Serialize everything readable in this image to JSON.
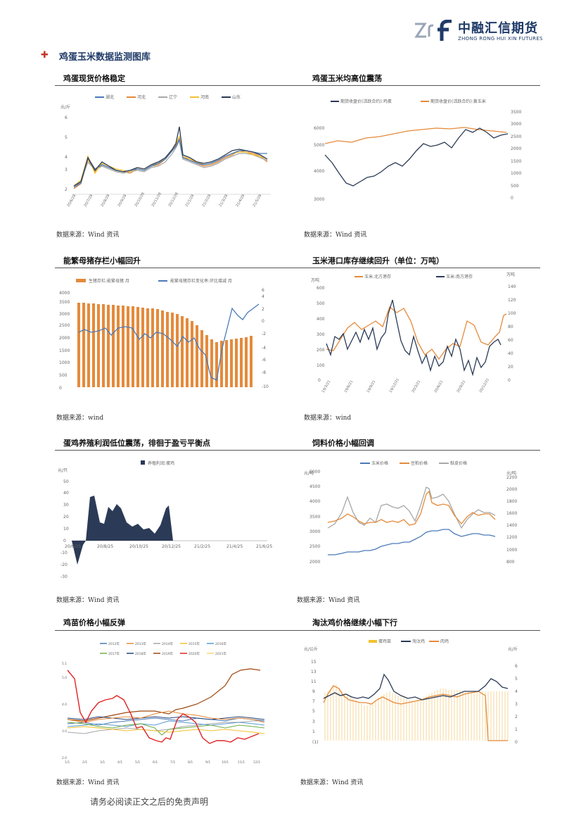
{
  "logo": {
    "cn": "中融汇信期货",
    "en": "ZHONG RONG HUI XIN FUTURES"
  },
  "section_title": "鸡蛋玉米数据监测图库",
  "panels": [
    {
      "title": "鸡蛋现货价格稳定",
      "source": "数据来源：Wind 资讯",
      "chart": {
        "legend": [
          "湖北",
          "河北",
          "辽宁",
          "河南",
          "山东"
        ],
        "colors": [
          "#4a7ab8",
          "#e58a3b",
          "#a8a8a8",
          "#f2c12e",
          "#2b3a56"
        ],
        "unit": "元/斤",
        "yticks": [
          "2",
          "3",
          "4",
          "5",
          "6"
        ],
        "xticks": [
          "20/6/28",
          "20/7/28",
          "20/8/28",
          "20/9/28",
          "20/10/28",
          "20/11/28",
          "20/12/28",
          "21/1/28",
          "21/2/28",
          "21/3/28",
          "21/4/28",
          "21/5/28"
        ]
      }
    },
    {
      "title": "鸡蛋玉米均高位震荡",
      "source": "数据来源：Wind 资讯",
      "chart": {
        "legend": [
          "期货收盘价(活跃合约):鸡蛋",
          "期货收盘价(活跃合约):黄玉米"
        ],
        "colors": [
          "#2b3a56",
          "#e58a3b"
        ],
        "yleft": [
          "3000",
          "4000",
          "5000",
          "6000"
        ],
        "yright": [
          "0",
          "500",
          "1000",
          "1500",
          "2000",
          "2500",
          "3000",
          "3500"
        ]
      }
    },
    {
      "title": "能繁母猪存栏小幅回升",
      "source": "数据来源：wind",
      "chart": {
        "legend": [
          "生猪存栏:能繁母猪 月",
          "能繁母猪存栏变化率:环比增减 月"
        ],
        "colors": [
          "#e58a3b",
          "#4a7ab8"
        ],
        "yleft": [
          "0",
          "500",
          "1000",
          "1500",
          "2000",
          "2500",
          "3000",
          "3500",
          "4000"
        ],
        "yright": [
          "-10",
          "-8",
          "-6",
          "-4",
          "-2",
          "0",
          "2",
          "4",
          "6"
        ]
      }
    },
    {
      "title": "玉米港口库存继续回升（单位：万吨）",
      "source": "数据来源：wind",
      "chart": {
        "legend": [
          "玉米:北方港存",
          "玉米:南方港存"
        ],
        "colors": [
          "#e58a3b",
          "#2b3a56"
        ],
        "unit_left": "万吨",
        "unit_right": "万吨",
        "yleft": [
          "0",
          "100",
          "200",
          "300",
          "400",
          "500",
          "600"
        ],
        "yright": [
          "0",
          "20",
          "40",
          "60",
          "80",
          "100",
          "120",
          "140"
        ],
        "xticks": [
          "19/3/21",
          "19/6/21",
          "19/9/21",
          "19/12/21",
          "20/3/21",
          "20/6/21",
          "20/9/21",
          "20/12/21"
        ]
      }
    },
    {
      "title": "蛋鸡养殖利润低位震荡，徘徊于盈亏平衡点",
      "source": "数据来源：Wind 资讯",
      "chart": {
        "legend": [
          "养殖利润:蛋鸡"
        ],
        "colors": [
          "#2b3a56"
        ],
        "unit": "元/只",
        "yticks": [
          "-30",
          "-20",
          "-10",
          "0",
          "10",
          "20",
          "30",
          "40",
          "50"
        ],
        "xticks": [
          "20/6/25",
          "20/8/25",
          "20/10/25",
          "20/12/25",
          "21/2/25",
          "21/4/25",
          "21/6/25"
        ]
      }
    },
    {
      "title": "饲料价格小幅回调",
      "source": "数据来源：Wind 资讯",
      "chart": {
        "legend": [
          "玉米价格",
          "豆粕价格",
          "麸皮价格"
        ],
        "colors": [
          "#4a7ab8",
          "#e58a3b",
          "#a8a8a8"
        ],
        "unit_left": "元/吨",
        "unit_right": "元/吨",
        "yleft": [
          "2000",
          "2500",
          "3000",
          "3500",
          "4000",
          "4500",
          "5000"
        ],
        "yright": [
          "800",
          "1000",
          "1200",
          "1400",
          "1600",
          "1800",
          "2000",
          "2200"
        ]
      }
    },
    {
      "title": "鸡苗价格小幅反弹",
      "source": "数据来源：Wind 资讯",
      "chart": {
        "legend": [
          "2012年",
          "2013年",
          "2014年",
          "2015年",
          "2016年",
          "2017年",
          "2018年",
          "2019年",
          "2020年",
          "2021年"
        ],
        "colors": [
          "#4a7ab8",
          "#e58a3b",
          "#a8a8a8",
          "#f2c12e",
          "#5b9bd5",
          "#70ad47",
          "#264478",
          "#9e480e",
          "#e02424",
          "#f5d76e"
        ],
        "xticks": [
          "1/1",
          "2/1",
          "3/1",
          "4/1",
          "5/1",
          "6/1",
          "7/1",
          "8/1",
          "9/1",
          "10/1",
          "11/1",
          "12/1"
        ]
      }
    },
    {
      "title": "淘汰鸡价格继续小幅下行",
      "source": "数据来源：Wind 资讯",
      "chart": {
        "legend": [
          "蛋鸡苗",
          "淘汰鸡",
          "肉鸡"
        ],
        "colors": [
          "#f2c12e",
          "#2b3a56",
          "#e58a3b"
        ],
        "unit_left": "元/公斤",
        "unit_right": "元/斤",
        "yleft": [
          "(1)",
          "1",
          "3",
          "5",
          "7",
          "9",
          "11",
          "13",
          "15"
        ],
        "yright": [
          "0",
          "1",
          "2",
          "3",
          "4",
          "5",
          "6"
        ]
      }
    }
  ],
  "footer": "请务必阅读正文之后的免责声明"
}
